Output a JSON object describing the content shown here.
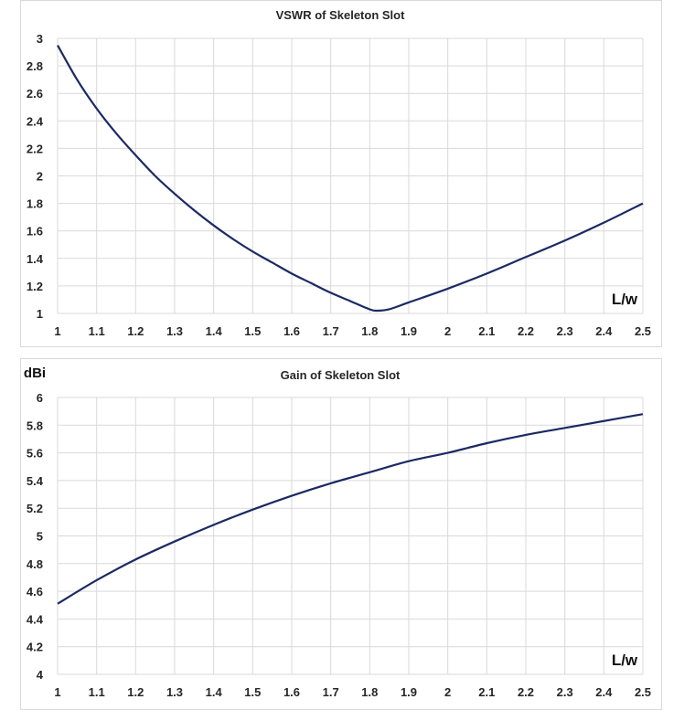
{
  "chart_data": [
    {
      "type": "line",
      "title": "VSWR of Skeleton Slot",
      "xlabel": "L/w",
      "ylabel": "",
      "xlim": [
        1,
        2.5
      ],
      "ylim": [
        1,
        3
      ],
      "xticks": [
        "1",
        "1.1",
        "1.2",
        "1.3",
        "1.4",
        "1.5",
        "1.6",
        "1.7",
        "1.8",
        "1.9",
        "2",
        "2.1",
        "2.2",
        "2.3",
        "2.4",
        "2.5"
      ],
      "yticks": [
        "1",
        "1.2",
        "1.4",
        "1.6",
        "1.8",
        "2",
        "2.2",
        "2.4",
        "2.6",
        "2.8",
        "3"
      ],
      "grid": true,
      "legend": "none",
      "line_color": "#1b2a63",
      "series": [
        {
          "x": [
            1,
            1.05,
            1.1,
            1.15,
            1.2,
            1.25,
            1.3,
            1.35,
            1.4,
            1.45,
            1.5,
            1.55,
            1.6,
            1.65,
            1.7,
            1.75,
            1.8,
            1.82,
            1.85,
            1.9,
            2,
            2.1,
            2.2,
            2.3,
            2.4,
            2.5
          ],
          "y": [
            2.95,
            2.7,
            2.49,
            2.31,
            2.15,
            2.0,
            1.87,
            1.75,
            1.64,
            1.54,
            1.45,
            1.37,
            1.29,
            1.22,
            1.15,
            1.09,
            1.03,
            1.02,
            1.03,
            1.08,
            1.18,
            1.29,
            1.41,
            1.53,
            1.66,
            1.8
          ]
        }
      ]
    },
    {
      "type": "line",
      "title": "Gain of Skeleton Slot",
      "xlabel": "L/w",
      "ylabel": "dBi",
      "xlim": [
        1,
        2.5
      ],
      "ylim": [
        4,
        6
      ],
      "xticks": [
        "1",
        "1.1",
        "1.2",
        "1.3",
        "1.4",
        "1.5",
        "1.6",
        "1.7",
        "1.8",
        "1.9",
        "2",
        "2.1",
        "2.2",
        "2.3",
        "2.4",
        "2.5"
      ],
      "yticks": [
        "4",
        "4.2",
        "4.4",
        "4.6",
        "4.8",
        "5",
        "5.2",
        "5.4",
        "5.6",
        "5.8",
        "6"
      ],
      "grid": true,
      "legend": "none",
      "line_color": "#1b2a63",
      "series": [
        {
          "x": [
            1,
            1.1,
            1.2,
            1.3,
            1.4,
            1.5,
            1.6,
            1.7,
            1.8,
            1.9,
            2,
            2.1,
            2.2,
            2.3,
            2.4,
            2.5
          ],
          "y": [
            4.51,
            4.68,
            4.83,
            4.96,
            5.08,
            5.19,
            5.29,
            5.38,
            5.46,
            5.54,
            5.6,
            5.67,
            5.73,
            5.78,
            5.83,
            5.88
          ]
        }
      ]
    }
  ]
}
